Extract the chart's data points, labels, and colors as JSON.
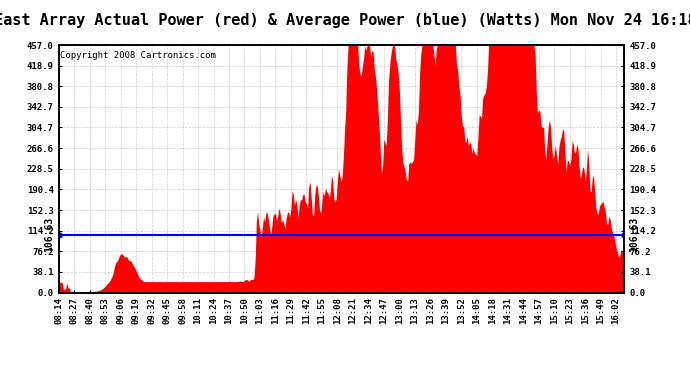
{
  "title": "East Array Actual Power (red) & Average Power (blue) (Watts) Mon Nov 24 16:18",
  "copyright": "Copyright 2008 Cartronics.com",
  "avg_power": 106.63,
  "y_max": 457.0,
  "y_min": 0.0,
  "y_ticks": [
    0.0,
    38.1,
    76.2,
    114.2,
    152.3,
    190.4,
    228.5,
    266.6,
    304.7,
    342.7,
    380.8,
    418.9,
    457.0
  ],
  "background_color": "#ffffff",
  "fill_color": "#ff0000",
  "avg_line_color": "#0000ff",
  "grid_color": "#aaaaaa",
  "title_fontsize": 11,
  "copyright_fontsize": 6.5,
  "tick_label_fontsize": 6.5,
  "avg_label_fontsize": 7
}
